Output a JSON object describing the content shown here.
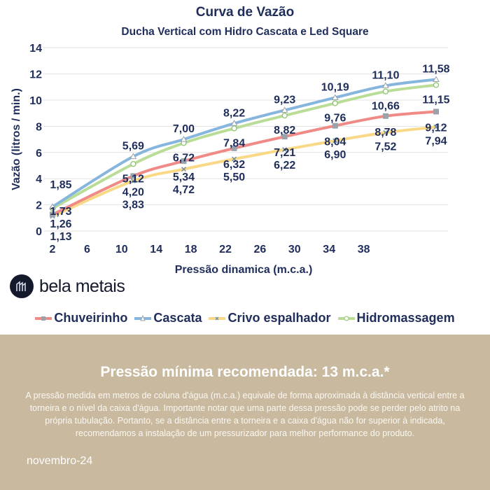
{
  "chart_data": {
    "type": "line",
    "title": "Curva de Vazão",
    "subtitle": "Ducha Vertical com Hidro Cascata e Led Square",
    "xlabel": "Pressão dinamica (m.c.a.)",
    "ylabel": "Vazão (litros / min.)",
    "x": [
      2,
      10,
      15,
      20,
      25,
      30,
      35,
      40
    ],
    "xticks": [
      "2",
      "6",
      "10",
      "14",
      "18",
      "22",
      "26",
      "30",
      "34",
      "38"
    ],
    "yticks": [
      "0",
      "2",
      "4",
      "6",
      "8",
      "10",
      "12",
      "14"
    ],
    "ylim": [
      0,
      14
    ],
    "grid": true,
    "legend_position": "bottom",
    "series": [
      {
        "name": "Chuveirinho",
        "color": "#ef8a87",
        "marker": "square",
        "values": [
          1.26,
          4.2,
          5.34,
          6.32,
          7.21,
          8.04,
          8.78,
          9.12
        ],
        "labels": [
          "1,26",
          "4,20",
          "5,34",
          "6,32",
          "7,21",
          "8,04",
          "8,78",
          "9,12"
        ]
      },
      {
        "name": "Cascata",
        "color": "#86b5de",
        "marker": "triangle",
        "values": [
          1.85,
          5.69,
          7.0,
          8.22,
          9.23,
          10.19,
          11.1,
          11.58
        ],
        "labels": [
          "1,85",
          "5,69",
          "7,00",
          "8,22",
          "9,23",
          "10,19",
          "11,10",
          "11,58"
        ]
      },
      {
        "name": "Crivo espalhador",
        "color": "#f9d985",
        "marker": "x",
        "values": [
          1.13,
          3.83,
          4.72,
          5.5,
          6.22,
          6.9,
          7.52,
          7.94
        ],
        "labels": [
          "1,13",
          "3,83",
          "4,72",
          "5,50",
          "6,22",
          "6,90",
          "7,52",
          "7,94"
        ]
      },
      {
        "name": "Hidromassagem",
        "color": "#b9dd97",
        "marker": "circle",
        "values": [
          1.73,
          5.12,
          6.72,
          7.84,
          8.82,
          9.76,
          10.66,
          11.15
        ],
        "labels": [
          "1,73",
          "5,12",
          "6,72",
          "7,84",
          "8,82",
          "9,76",
          "10,66",
          "11,15"
        ]
      }
    ]
  },
  "brand": {
    "name": "bela metais"
  },
  "info": {
    "headline": "Pressão mínima recomendada: 13 m.c.a.*",
    "body": "A pressão medida em metros de coluna d'água (m.c.a.) equivale de forma aproximada à distância vertical entre a torneira e o nível da caixa d'água. Importante notar que uma parte dessa pressão pode se perder pelo atrito na própria tubulação. Portanto, se a distância entre a torneira e a caixa d'água não for superior à indicada, recomendamos a instalação de um pressurizador para melhor performance do produto.",
    "date": "novembro-24"
  }
}
